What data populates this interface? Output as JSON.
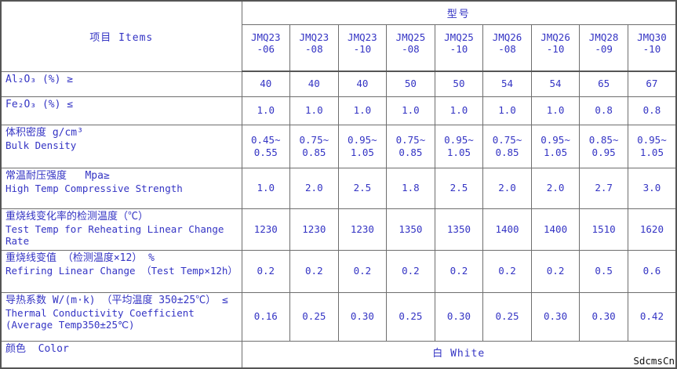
{
  "header": {
    "items": "项目 Items",
    "model_group": "型号",
    "models": [
      {
        "series": "JMQ23",
        "grade": "-06"
      },
      {
        "series": "JMQ23",
        "grade": "-08"
      },
      {
        "series": "JMQ23",
        "grade": "-10"
      },
      {
        "series": "JMQ25",
        "grade": "-08"
      },
      {
        "series": "JMQ25",
        "grade": "-10"
      },
      {
        "series": "JMQ26",
        "grade": "-08"
      },
      {
        "series": "JMQ26",
        "grade": "-10"
      },
      {
        "series": "JMQ28",
        "grade": "-09"
      },
      {
        "series": "JMQ30",
        "grade": "-10"
      }
    ]
  },
  "rows": [
    {
      "zh": "Al₂O₃ (%) ≥",
      "en": "",
      "values": [
        "40",
        "40",
        "40",
        "50",
        "50",
        "54",
        "54",
        "65",
        "67"
      ]
    },
    {
      "zh": "Fe₂O₃ (%) ≤",
      "en": "",
      "values": [
        "1.0",
        "1.0",
        "1.0",
        "1.0",
        "1.0",
        "1.0",
        "1.0",
        "0.8",
        "0.8"
      ]
    },
    {
      "zh": "体积密度 g/cm³",
      "en": "Bulk Density",
      "values": [
        [
          "0.45~",
          "0.55"
        ],
        [
          "0.75~",
          "0.85"
        ],
        [
          "0.95~",
          "1.05"
        ],
        [
          "0.75~",
          "0.85"
        ],
        [
          "0.95~",
          "1.05"
        ],
        [
          "0.75~",
          "0.85"
        ],
        [
          "0.95~",
          "1.05"
        ],
        [
          "0.85~",
          "0.95"
        ],
        [
          "0.95~",
          "1.05"
        ]
      ]
    },
    {
      "zh": "常温耐压强度   Mpa≥",
      "en": "High Temp Compressive Strength",
      "values": [
        "1.0",
        "2.0",
        "2.5",
        "1.8",
        "2.5",
        "2.0",
        "2.0",
        "2.7",
        "3.0"
      ]
    },
    {
      "zh": "重烧线变化率的检测温度（℃）",
      "en": "Test Temp for Reheating Linear Change Rate",
      "values": [
        "1230",
        "1230",
        "1230",
        "1350",
        "1350",
        "1400",
        "1400",
        "1510",
        "1620"
      ]
    },
    {
      "zh": "重烧线变值 （检测温度×12） %",
      "en": "Refiring Linear Change （Test Temp×12h）",
      "values": [
        "0.2",
        "0.2",
        "0.2",
        "0.2",
        "0.2",
        "0.2",
        "0.2",
        "0.5",
        "0.6"
      ]
    },
    {
      "zh": "导热系数 W/(m·k) （平均温度 350±25℃） ≤",
      "en": "Thermal Conductivity Coefficient (Average Temp350±25℃)",
      "values": [
        "0.16",
        "0.25",
        "0.30",
        "0.25",
        "0.30",
        "0.25",
        "0.30",
        "0.30",
        "0.42"
      ]
    }
  ],
  "color_row": {
    "label": "颜色  Color",
    "value": "白  White"
  },
  "watermark": "SdcmsCn",
  "colors": {
    "text": "#3434c4",
    "border": "#6e6e6e",
    "outer_border": "#555555",
    "watermark": "#111111"
  }
}
